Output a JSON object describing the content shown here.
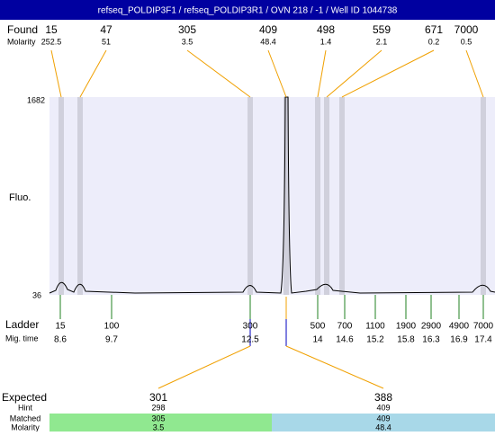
{
  "header": {
    "title": "refseq_POLDIP3F1 / refseq_POLDIP3R1 / OVN 218 / -1 / Well ID 1044738"
  },
  "found": {
    "label": "Found",
    "sizes": [
      15,
      47,
      305,
      409,
      498,
      559,
      671,
      7000
    ],
    "molarity_label": "Molarity",
    "molarity": [
      252.5,
      51,
      3.5,
      48.4,
      1.4,
      2.1,
      0.2,
      0.5
    ]
  },
  "plot": {
    "y_label": "Fluo.",
    "y_max": 1682,
    "y_min": 36
  },
  "ladder": {
    "label": "Ladder",
    "sizes": [
      15,
      100,
      300,
      500,
      700,
      1100,
      1900,
      2900,
      4900,
      7000
    ],
    "mig_label": "Mig. time",
    "times": [
      8.6,
      9.7,
      12.5,
      14,
      14.6,
      15.2,
      15.8,
      16.3,
      16.9,
      17.4
    ]
  },
  "expected": {
    "label": "Expected",
    "values": [
      301,
      388
    ],
    "hint_label": "Hint",
    "hint": [
      298,
      409
    ],
    "matched_label": "Matched",
    "matched": [
      305,
      409
    ],
    "molarity_label": "Molarity",
    "molarity": [
      3.5,
      48.4
    ]
  }
}
